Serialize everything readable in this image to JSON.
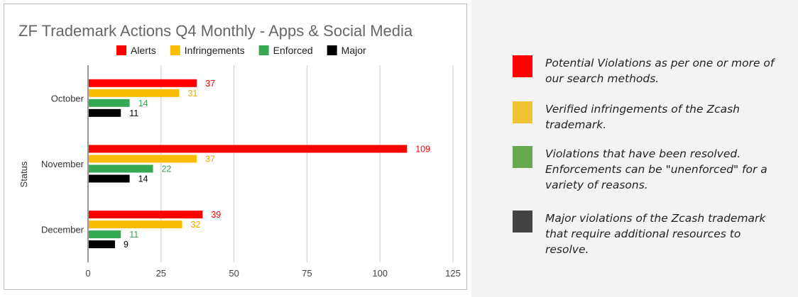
{
  "chart_data": {
    "type": "bar",
    "orientation": "horizontal",
    "title": "ZF Trademark Actions Q4 Monthly - Apps & Social Media",
    "ylabel": "Status",
    "xlabel": "",
    "categories": [
      "October",
      "November",
      "December"
    ],
    "series": [
      {
        "name": "Alerts",
        "color": "#ff0000",
        "values": [
          37,
          109,
          39
        ]
      },
      {
        "name": "Infringements",
        "color": "#fbbc04",
        "values": [
          31,
          37,
          32
        ]
      },
      {
        "name": "Enforced",
        "color": "#34a853",
        "values": [
          14,
          22,
          11
        ]
      },
      {
        "name": "Major",
        "color": "#000000",
        "values": [
          11,
          14,
          9
        ]
      }
    ],
    "xlim": [
      0,
      125
    ],
    "xticks": [
      "0",
      "25",
      "50",
      "75",
      "100",
      "125"
    ],
    "grid": true,
    "legend_position": "top"
  },
  "side_legend": {
    "items": [
      {
        "color": "#ff0000",
        "text": "Potential Violations as per one or more of our search methods."
      },
      {
        "color": "#f1c232",
        "text": "Verified infringements of the Zcash trademark."
      },
      {
        "color": "#6aa84f",
        "text": "Violations that have been resolved. Enforcements can be \"unenforced\" for a variety of reasons."
      },
      {
        "color": "#434343",
        "text": "Major violations of the Zcash trademark that require additional resources to resolve."
      }
    ]
  }
}
